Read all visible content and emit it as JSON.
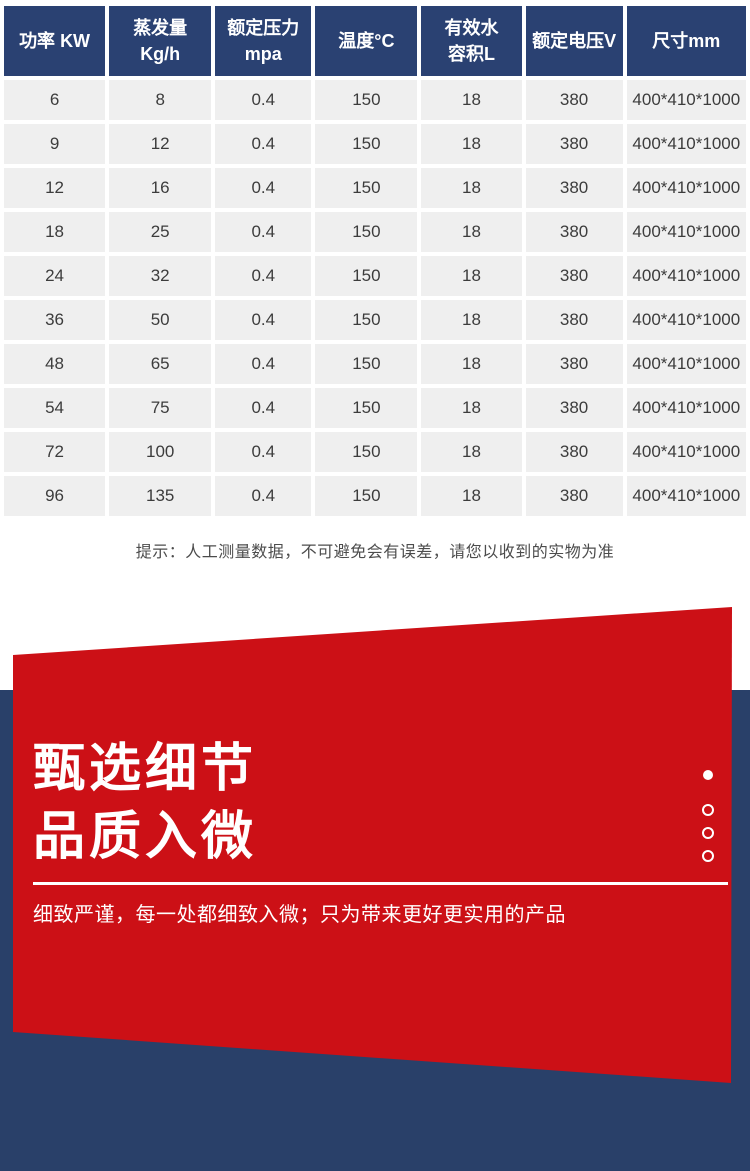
{
  "spec_table": {
    "headers": [
      "功率 KW",
      "蒸发量\nKg/h",
      "额定压力\nmpa",
      "温度°C",
      "有效水\n容积L",
      "额定电压V",
      "尺寸mm"
    ],
    "rows": [
      [
        "6",
        "8",
        "0.4",
        "150",
        "18",
        "380",
        "400*410*1000"
      ],
      [
        "9",
        "12",
        "0.4",
        "150",
        "18",
        "380",
        "400*410*1000"
      ],
      [
        "12",
        "16",
        "0.4",
        "150",
        "18",
        "380",
        "400*410*1000"
      ],
      [
        "18",
        "25",
        "0.4",
        "150",
        "18",
        "380",
        "400*410*1000"
      ],
      [
        "24",
        "32",
        "0.4",
        "150",
        "18",
        "380",
        "400*410*1000"
      ],
      [
        "36",
        "50",
        "0.4",
        "150",
        "18",
        "380",
        "400*410*1000"
      ],
      [
        "48",
        "65",
        "0.4",
        "150",
        "18",
        "380",
        "400*410*1000"
      ],
      [
        "54",
        "75",
        "0.4",
        "150",
        "18",
        "380",
        "400*410*1000"
      ],
      [
        "72",
        "100",
        "0.4",
        "150",
        "18",
        "380",
        "400*410*1000"
      ],
      [
        "96",
        "135",
        "0.4",
        "150",
        "18",
        "380",
        "400*410*1000"
      ]
    ]
  },
  "note": {
    "text": "提示：人工测量数据，不可避免会有误差，请您以收到的实物为准"
  },
  "banner": {
    "headline_line1": "甄选细节",
    "headline_line2": "品质入微",
    "subtitle": "细致严谨，每一处都细致入微；只为带来更好更实用的产品"
  },
  "colors": {
    "header_navy": "#2a4172",
    "cell_gray": "#efefef",
    "banner_navy": "#294069",
    "banner_red": "#cc1016",
    "note_gray": "#4c4c4c"
  }
}
